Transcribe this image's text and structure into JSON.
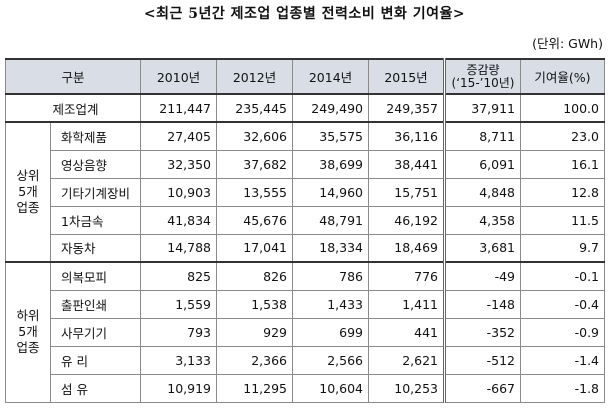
{
  "title": "<최근 5년간 제조업 업종별 전력소비 변화 기여율>",
  "unit": "(단위: GWh)",
  "headers": {
    "category": "구분",
    "y2010": "2010년",
    "y2012": "2012년",
    "y2014": "2014년",
    "y2015": "2015년",
    "change_line1": "증감량",
    "change_line2": "(‘15-’10년)",
    "contribution": "기여율(%)"
  },
  "manufacturing": {
    "label": "제조업계",
    "values": [
      "211,447",
      "235,445",
      "249,490",
      "249,357",
      "37,911",
      "100.0"
    ]
  },
  "top_group": {
    "label_lines": [
      "상위",
      "5개",
      "업종"
    ],
    "rows": [
      {
        "name": "화학제품",
        "values": [
          "27,405",
          "32,606",
          "35,575",
          "36,116",
          "8,711",
          "23.0"
        ]
      },
      {
        "name": "영상음향",
        "values": [
          "32,350",
          "37,682",
          "38,699",
          "38,441",
          "6,091",
          "16.1"
        ]
      },
      {
        "name": "기타기계장비",
        "values": [
          "10,903",
          "13,555",
          "14,960",
          "15,751",
          "4,848",
          "12.8"
        ]
      },
      {
        "name": "1차금속",
        "values": [
          "41,834",
          "45,676",
          "48,791",
          "46,192",
          "4,358",
          "11.5"
        ]
      },
      {
        "name": "자동차",
        "values": [
          "14,788",
          "17,041",
          "18,334",
          "18,469",
          "3,681",
          "9.7"
        ]
      }
    ]
  },
  "bottom_group": {
    "label_lines": [
      "하위",
      "5개",
      "업종"
    ],
    "rows": [
      {
        "name": "의복모피",
        "values": [
          "825",
          "826",
          "786",
          "776",
          "-49",
          "-0.1"
        ]
      },
      {
        "name": "출판인쇄",
        "values": [
          "1,559",
          "1,538",
          "1,433",
          "1,411",
          "-148",
          "-0.4"
        ]
      },
      {
        "name": "사무기기",
        "values": [
          "793",
          "929",
          "699",
          "441",
          "-352",
          "-0.9"
        ]
      },
      {
        "name": "유 리",
        "values": [
          "3,133",
          "2,366",
          "2,566",
          "2,621",
          "-512",
          "-1.4"
        ]
      },
      {
        "name": "섬 유",
        "values": [
          "10,919",
          "11,295",
          "10,604",
          "10,253",
          "-667",
          "-1.8"
        ]
      }
    ]
  }
}
